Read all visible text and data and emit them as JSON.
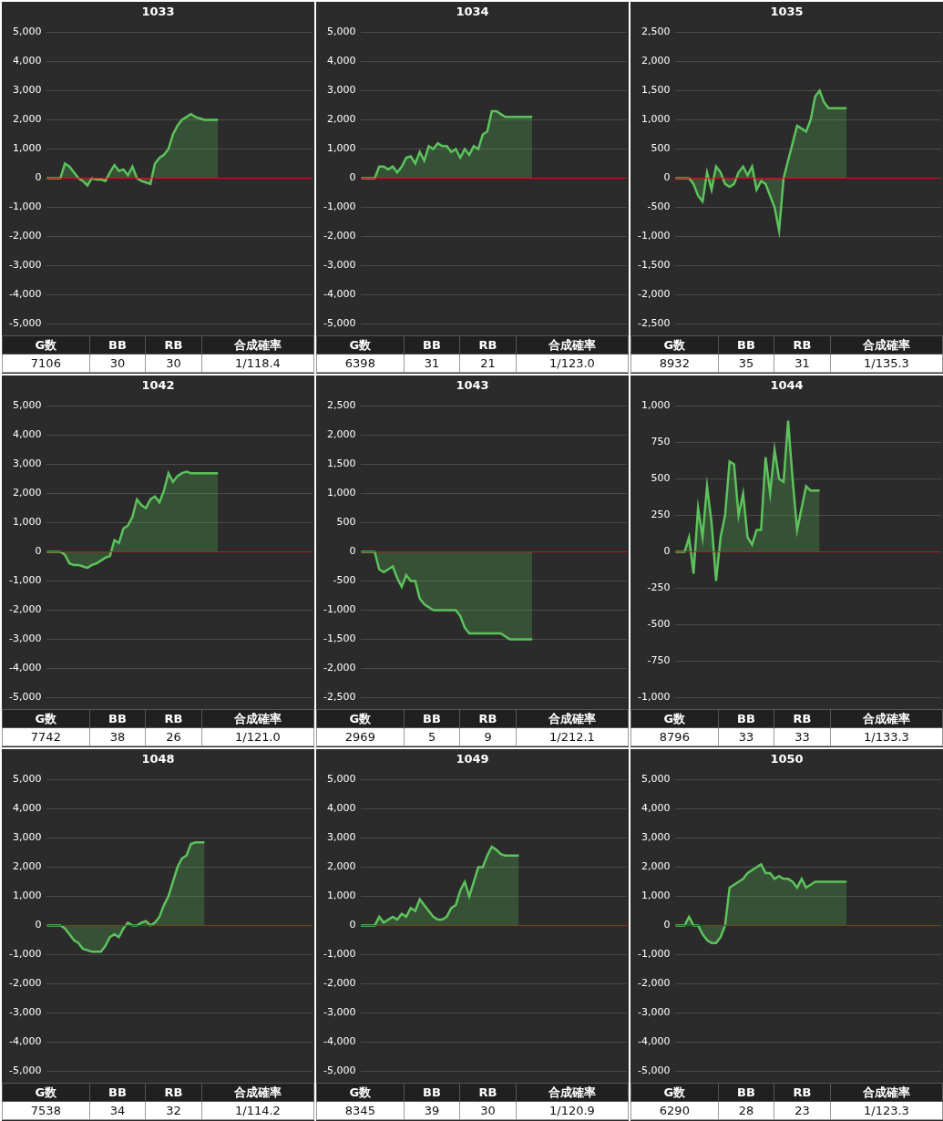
{
  "chart_data": [
    {
      "type": "area",
      "title": "1033",
      "categories": [
        null,
        null,
        null,
        null,
        null,
        null,
        null,
        null,
        null,
        null,
        null,
        null,
        null,
        null,
        null,
        null,
        null,
        null,
        null,
        null,
        null,
        null,
        null,
        null,
        null,
        null,
        null,
        null,
        null,
        null,
        null,
        null,
        null,
        null,
        null,
        null,
        null,
        null,
        null,
        null,
        null,
        null,
        null,
        null,
        null,
        null,
        null,
        null,
        null,
        null,
        null,
        null,
        null,
        null,
        null,
        null,
        null,
        null,
        null,
        null
      ],
      "series": [
        {
          "color": "#5cc35c",
          "values": [
            0,
            0,
            0,
            0,
            500,
            400,
            200,
            0,
            -100,
            -250,
            0,
            -50,
            -50,
            -100,
            200,
            450,
            250,
            300,
            100,
            400,
            0,
            -100,
            -150,
            -200,
            500,
            700,
            800,
            1000,
            1500,
            1800,
            2000,
            2100,
            2200,
            2100,
            2050,
            2000,
            2000,
            2000,
            2000,
            null,
            null,
            null,
            null,
            null,
            null,
            null,
            null,
            null,
            null,
            null,
            null,
            null,
            null,
            null,
            null,
            null,
            null,
            null,
            null,
            null
          ]
        }
      ],
      "ylim": [
        -5000,
        5000
      ],
      "yticks": [
        {
          "value": -5000,
          "label": "-5,000"
        },
        {
          "value": -4000,
          "label": "-4,000"
        },
        {
          "value": -3000,
          "label": "-3,000"
        },
        {
          "value": -2000,
          "label": "-2,000"
        },
        {
          "value": -1000,
          "label": "-1,000"
        },
        0,
        {
          "value": 1000,
          "label": "1,000"
        },
        {
          "value": 2000,
          "label": "2,000"
        },
        {
          "value": 3000,
          "label": "3,000"
        },
        {
          "value": 4000,
          "label": "4,000"
        },
        {
          "value": 5000,
          "label": "5,000"
        }
      ],
      "grid": "y",
      "marker": "none",
      "tick_labels": "y",
      "ref_lines": [
        {
          "axis": "y",
          "value": 0,
          "color": "#c8161d"
        }
      ],
      "annotations": [
        "G数",
        "BB",
        "RB",
        "合成確率",
        "7106",
        "30",
        "30",
        "1/118.4"
      ]
    },
    {
      "type": "area",
      "title": "1034",
      "categories": [
        null,
        null,
        null,
        null,
        null,
        null,
        null,
        null,
        null,
        null,
        null,
        null,
        null,
        null,
        null,
        null,
        null,
        null,
        null,
        null,
        null,
        null,
        null,
        null,
        null,
        null,
        null,
        null,
        null,
        null,
        null,
        null,
        null,
        null,
        null,
        null,
        null,
        null,
        null,
        null,
        null,
        null,
        null,
        null,
        null,
        null,
        null,
        null,
        null,
        null,
        null,
        null,
        null,
        null,
        null,
        null,
        null,
        null,
        null,
        null
      ],
      "series": [
        {
          "color": "#5cc35c",
          "values": [
            0,
            0,
            0,
            0,
            400,
            400,
            300,
            400,
            200,
            400,
            700,
            750,
            500,
            900,
            600,
            1100,
            1000,
            1200,
            1100,
            1100,
            900,
            1000,
            700,
            1000,
            800,
            1100,
            1000,
            1500,
            1600,
            2300,
            2300,
            2200,
            2100,
            2100,
            2100,
            2100,
            2100,
            2100,
            2100,
            null,
            null,
            null,
            null,
            null,
            null,
            null,
            null,
            null,
            null,
            null,
            null,
            null,
            null,
            null,
            null,
            null,
            null,
            null,
            null,
            null
          ]
        }
      ],
      "ylim": [
        -5000,
        5000
      ],
      "yticks": [
        {
          "value": -5000,
          "label": "-5,000"
        },
        {
          "value": -4000,
          "label": "-4,000"
        },
        {
          "value": -3000,
          "label": "-3,000"
        },
        {
          "value": -2000,
          "label": "-2,000"
        },
        {
          "value": -1000,
          "label": "-1,000"
        },
        0,
        {
          "value": 1000,
          "label": "1,000"
        },
        {
          "value": 2000,
          "label": "2,000"
        },
        {
          "value": 3000,
          "label": "3,000"
        },
        {
          "value": 4000,
          "label": "4,000"
        },
        {
          "value": 5000,
          "label": "5,000"
        }
      ],
      "grid": "y",
      "marker": "none",
      "tick_labels": "y",
      "ref_lines": [
        {
          "axis": "y",
          "value": 0,
          "color": "#c8161d"
        }
      ],
      "annotations": [
        "G数",
        "BB",
        "RB",
        "合成確率",
        "6398",
        "31",
        "21",
        "1/123.0"
      ]
    },
    {
      "type": "area",
      "title": "1035",
      "categories": [
        null,
        null,
        null,
        null,
        null,
        null,
        null,
        null,
        null,
        null,
        null,
        null,
        null,
        null,
        null,
        null,
        null,
        null,
        null,
        null,
        null,
        null,
        null,
        null,
        null,
        null,
        null,
        null,
        null,
        null,
        null,
        null,
        null,
        null,
        null,
        null,
        null,
        null,
        null,
        null,
        null,
        null,
        null,
        null,
        null,
        null,
        null,
        null,
        null,
        null,
        null,
        null,
        null,
        null,
        null,
        null,
        null,
        null,
        null,
        null
      ],
      "series": [
        {
          "color": "#5cc35c",
          "values": [
            0,
            0,
            0,
            0,
            -100,
            -300,
            -400,
            100,
            -200,
            200,
            100,
            -100,
            -150,
            -100,
            100,
            200,
            50,
            200,
            -200,
            -50,
            -100,
            -300,
            -500,
            -900,
            0,
            300,
            600,
            900,
            850,
            800,
            1000,
            1400,
            1500,
            1300,
            1200,
            1200,
            1200,
            1200,
            1200,
            null,
            null,
            null,
            null,
            null,
            null,
            null,
            null,
            null,
            null,
            null,
            null,
            null,
            null,
            null,
            null,
            null,
            null,
            null,
            null,
            null
          ]
        }
      ],
      "ylim": [
        -2500,
        2500
      ],
      "yticks": [
        {
          "value": -2500,
          "label": "-2,500"
        },
        {
          "value": -2000,
          "label": "-2,000"
        },
        {
          "value": -1500,
          "label": "-1,500"
        },
        {
          "value": -1000,
          "label": "-1,000"
        },
        -500,
        0,
        500,
        {
          "value": 1000,
          "label": "1,000"
        },
        {
          "value": 1500,
          "label": "1,500"
        },
        {
          "value": 2000,
          "label": "2,000"
        },
        {
          "value": 2500,
          "label": "2,500"
        }
      ],
      "grid": "y",
      "marker": "none",
      "tick_labels": "y",
      "ref_lines": [
        {
          "axis": "y",
          "value": 0,
          "color": "#c8161d"
        }
      ],
      "annotations": [
        "G数",
        "BB",
        "RB",
        "合成確率",
        "8932",
        "35",
        "31",
        "1/135.3"
      ]
    },
    {
      "type": "area",
      "title": "1042",
      "categories": [
        null,
        null,
        null,
        null,
        null,
        null,
        null,
        null,
        null,
        null,
        null,
        null,
        null,
        null,
        null,
        null,
        null,
        null,
        null,
        null,
        null,
        null,
        null,
        null,
        null,
        null,
        null,
        null,
        null,
        null,
        null,
        null,
        null,
        null,
        null,
        null,
        null,
        null,
        null,
        null,
        null,
        null,
        null,
        null,
        null,
        null,
        null,
        null,
        null,
        null,
        null,
        null,
        null,
        null,
        null,
        null,
        null,
        null,
        null,
        null
      ],
      "series": [
        {
          "color": "#5cc35c",
          "values": [
            0,
            0,
            0,
            0,
            -100,
            -400,
            -450,
            -450,
            -500,
            -550,
            -450,
            -400,
            -300,
            -200,
            -150,
            400,
            300,
            800,
            900,
            1200,
            1800,
            1600,
            1500,
            1800,
            1900,
            1700,
            2100,
            2700,
            2400,
            2600,
            2700,
            2750,
            2700,
            2700,
            2700,
            2700,
            2700,
            2700,
            2700,
            null,
            null,
            null,
            null,
            null,
            null,
            null,
            null,
            null,
            null,
            null,
            null,
            null,
            null,
            null,
            null,
            null,
            null,
            null,
            null,
            null
          ]
        }
      ],
      "ylim": [
        -5000,
        5000
      ],
      "yticks": [
        {
          "value": -5000,
          "label": "-5,000"
        },
        {
          "value": -4000,
          "label": "-4,000"
        },
        {
          "value": -3000,
          "label": "-3,000"
        },
        {
          "value": -2000,
          "label": "-2,000"
        },
        {
          "value": -1000,
          "label": "-1,000"
        },
        0,
        {
          "value": 1000,
          "label": "1,000"
        },
        {
          "value": 2000,
          "label": "2,000"
        },
        {
          "value": 3000,
          "label": "3,000"
        },
        {
          "value": 4000,
          "label": "4,000"
        },
        {
          "value": 5000,
          "label": "5,000"
        }
      ],
      "grid": "y",
      "marker": "none",
      "tick_labels": "y",
      "ref_lines": [
        {
          "axis": "y",
          "value": 0,
          "color": "#c8161d"
        }
      ],
      "annotations": [
        "G数",
        "BB",
        "RB",
        "合成確率",
        "7742",
        "38",
        "26",
        "1/121.0"
      ]
    },
    {
      "type": "area",
      "title": "1043",
      "categories": [
        null,
        null,
        null,
        null,
        null,
        null,
        null,
        null,
        null,
        null,
        null,
        null,
        null,
        null,
        null,
        null,
        null,
        null,
        null,
        null,
        null,
        null,
        null,
        null,
        null,
        null,
        null,
        null,
        null,
        null,
        null,
        null,
        null,
        null,
        null,
        null,
        null,
        null,
        null,
        null,
        null,
        null,
        null,
        null,
        null,
        null,
        null,
        null,
        null,
        null,
        null,
        null,
        null,
        null,
        null,
        null,
        null,
        null,
        null,
        null
      ],
      "series": [
        {
          "color": "#5cc35c",
          "values": [
            0,
            0,
            0,
            0,
            -300,
            -350,
            -300,
            -250,
            -450,
            -600,
            -400,
            -500,
            -500,
            -800,
            -900,
            -950,
            -1000,
            -1000,
            -1000,
            -1000,
            -1000,
            -1000,
            -1100,
            -1300,
            -1400,
            -1400,
            -1400,
            -1400,
            -1400,
            -1400,
            -1400,
            -1400,
            -1450,
            -1500,
            -1500,
            -1500,
            -1500,
            -1500,
            -1500,
            null,
            null,
            null,
            null,
            null,
            null,
            null,
            null,
            null,
            null,
            null,
            null,
            null,
            null,
            null,
            null,
            null,
            null,
            null,
            null,
            null
          ]
        }
      ],
      "ylim": [
        -2500,
        2500
      ],
      "yticks": [
        {
          "value": -2500,
          "label": "-2,500"
        },
        {
          "value": -2000,
          "label": "-2,000"
        },
        {
          "value": -1500,
          "label": "-1,500"
        },
        {
          "value": -1000,
          "label": "-1,000"
        },
        -500,
        0,
        500,
        {
          "value": 1000,
          "label": "1,000"
        },
        {
          "value": 1500,
          "label": "1,500"
        },
        {
          "value": 2000,
          "label": "2,000"
        },
        {
          "value": 2500,
          "label": "2,500"
        }
      ],
      "grid": "y",
      "marker": "none",
      "tick_labels": "y",
      "ref_lines": [
        {
          "axis": "y",
          "value": 0,
          "color": "#c8161d"
        }
      ],
      "annotations": [
        "G数",
        "BB",
        "RB",
        "合成確率",
        "2969",
        "5",
        "9",
        "1/212.1"
      ]
    },
    {
      "type": "area",
      "title": "1044",
      "categories": [
        null,
        null,
        null,
        null,
        null,
        null,
        null,
        null,
        null,
        null,
        null,
        null,
        null,
        null,
        null,
        null,
        null,
        null,
        null,
        null,
        null,
        null,
        null,
        null,
        null,
        null,
        null,
        null,
        null,
        null,
        null,
        null,
        null,
        null,
        null,
        null,
        null,
        null,
        null,
        null,
        null,
        null,
        null,
        null,
        null,
        null,
        null,
        null,
        null,
        null,
        null,
        null,
        null,
        null,
        null,
        null,
        null,
        null,
        null,
        null
      ],
      "series": [
        {
          "color": "#5cc35c",
          "values": [
            0,
            0,
            0,
            100,
            -150,
            300,
            100,
            450,
            200,
            -200,
            100,
            250,
            620,
            600,
            250,
            400,
            100,
            50,
            150,
            150,
            650,
            400,
            700,
            500,
            480,
            900,
            500,
            150,
            300,
            450,
            420,
            420,
            420,
            null,
            null,
            null,
            null,
            null,
            null,
            null,
            null,
            null,
            null,
            null,
            null,
            null,
            null,
            null,
            null,
            null,
            null,
            null,
            null,
            null,
            null,
            null,
            null,
            null,
            null,
            null
          ]
        }
      ],
      "ylim": [
        -1000,
        1000
      ],
      "yticks": [
        {
          "value": -1000,
          "label": "-1,000"
        },
        -750,
        -500,
        -250,
        0,
        250,
        500,
        750,
        {
          "value": 1000,
          "label": "1,000"
        }
      ],
      "grid": "y",
      "marker": "none",
      "tick_labels": "y",
      "ref_lines": [
        {
          "axis": "y",
          "value": 0,
          "color": "#c8161d"
        }
      ],
      "annotations": [
        "G数",
        "BB",
        "RB",
        "合成確率",
        "8796",
        "33",
        "33",
        "1/133.3"
      ]
    },
    {
      "type": "area",
      "title": "1048",
      "categories": [
        null,
        null,
        null,
        null,
        null,
        null,
        null,
        null,
        null,
        null,
        null,
        null,
        null,
        null,
        null,
        null,
        null,
        null,
        null,
        null,
        null,
        null,
        null,
        null,
        null,
        null,
        null,
        null,
        null,
        null,
        null,
        null,
        null,
        null,
        null,
        null,
        null,
        null,
        null,
        null,
        null,
        null,
        null,
        null,
        null,
        null,
        null,
        null,
        null,
        null,
        null,
        null,
        null,
        null,
        null,
        null,
        null,
        null,
        null,
        null
      ],
      "series": [
        {
          "color": "#5cc35c",
          "values": [
            0,
            0,
            0,
            0,
            -100,
            -300,
            -500,
            -600,
            -800,
            -850,
            -900,
            -900,
            -900,
            -700,
            -400,
            -300,
            -400,
            -100,
            100,
            0,
            0,
            100,
            150,
            0,
            100,
            300,
            700,
            1000,
            1500,
            2000,
            2300,
            2400,
            2800,
            2850,
            2850,
            2850,
            null,
            null,
            null,
            null,
            null,
            null,
            null,
            null,
            null,
            null,
            null,
            null,
            null,
            null,
            null,
            null,
            null,
            null,
            null,
            null,
            null,
            null,
            null,
            null
          ]
        }
      ],
      "ylim": [
        -5000,
        5000
      ],
      "yticks": [
        {
          "value": -5000,
          "label": "-5,000"
        },
        {
          "value": -4000,
          "label": "-4,000"
        },
        {
          "value": -3000,
          "label": "-3,000"
        },
        {
          "value": -2000,
          "label": "-2,000"
        },
        {
          "value": -1000,
          "label": "-1,000"
        },
        0,
        {
          "value": 1000,
          "label": "1,000"
        },
        {
          "value": 2000,
          "label": "2,000"
        },
        {
          "value": 3000,
          "label": "3,000"
        },
        {
          "value": 4000,
          "label": "4,000"
        },
        {
          "value": 5000,
          "label": "5,000"
        }
      ],
      "grid": "y",
      "marker": "none",
      "tick_labels": "y",
      "ref_lines": [
        {
          "axis": "y",
          "value": 0,
          "color": "#c8161d"
        }
      ],
      "annotations": [
        "G数",
        "BB",
        "RB",
        "合成確率",
        "7538",
        "34",
        "32",
        "1/114.2"
      ]
    },
    {
      "type": "area",
      "title": "1049",
      "categories": [
        null,
        null,
        null,
        null,
        null,
        null,
        null,
        null,
        null,
        null,
        null,
        null,
        null,
        null,
        null,
        null,
        null,
        null,
        null,
        null,
        null,
        null,
        null,
        null,
        null,
        null,
        null,
        null,
        null,
        null,
        null,
        null,
        null,
        null,
        null,
        null,
        null,
        null,
        null,
        null,
        null,
        null,
        null,
        null,
        null,
        null,
        null,
        null,
        null,
        null,
        null,
        null,
        null,
        null,
        null,
        null,
        null,
        null,
        null,
        null
      ],
      "series": [
        {
          "color": "#5cc35c",
          "values": [
            0,
            0,
            0,
            0,
            300,
            100,
            200,
            300,
            200,
            400,
            300,
            600,
            500,
            900,
            700,
            500,
            300,
            200,
            200,
            300,
            600,
            700,
            1200,
            1500,
            1000,
            1500,
            2000,
            2000,
            2400,
            2700,
            2600,
            2450,
            2400,
            2400,
            2400,
            2400,
            null,
            null,
            null,
            null,
            null,
            null,
            null,
            null,
            null,
            null,
            null,
            null,
            null,
            null,
            null,
            null,
            null,
            null,
            null,
            null,
            null,
            null,
            null,
            null
          ]
        }
      ],
      "ylim": [
        -5000,
        5000
      ],
      "yticks": [
        {
          "value": -5000,
          "label": "-5,000"
        },
        {
          "value": -4000,
          "label": "-4,000"
        },
        {
          "value": -3000,
          "label": "-3,000"
        },
        {
          "value": -2000,
          "label": "-2,000"
        },
        {
          "value": -1000,
          "label": "-1,000"
        },
        0,
        {
          "value": 1000,
          "label": "1,000"
        },
        {
          "value": 2000,
          "label": "2,000"
        },
        {
          "value": 3000,
          "label": "3,000"
        },
        {
          "value": 4000,
          "label": "4,000"
        },
        {
          "value": 5000,
          "label": "5,000"
        }
      ],
      "grid": "y",
      "marker": "none",
      "tick_labels": "y",
      "ref_lines": [
        {
          "axis": "y",
          "value": 0,
          "color": "#c8161d"
        }
      ],
      "annotations": [
        "G数",
        "BB",
        "RB",
        "合成確率",
        "8345",
        "39",
        "30",
        "1/120.9"
      ]
    },
    {
      "type": "area",
      "title": "1050",
      "categories": [
        null,
        null,
        null,
        null,
        null,
        null,
        null,
        null,
        null,
        null,
        null,
        null,
        null,
        null,
        null,
        null,
        null,
        null,
        null,
        null,
        null,
        null,
        null,
        null,
        null,
        null,
        null,
        null,
        null,
        null,
        null,
        null,
        null,
        null,
        null,
        null,
        null,
        null,
        null,
        null,
        null,
        null,
        null,
        null,
        null,
        null,
        null,
        null,
        null,
        null,
        null,
        null,
        null,
        null,
        null,
        null,
        null,
        null,
        null,
        null
      ],
      "series": [
        {
          "color": "#5cc35c",
          "values": [
            0,
            0,
            0,
            300,
            0,
            0,
            -300,
            -500,
            -600,
            -600,
            -400,
            0,
            1300,
            1400,
            1500,
            1600,
            1800,
            1900,
            2000,
            2100,
            1800,
            1800,
            1600,
            1700,
            1600,
            1600,
            1500,
            1300,
            1600,
            1300,
            1400,
            1500,
            1500,
            1500,
            1500,
            1500,
            1500,
            1500,
            1500,
            null,
            null,
            null,
            null,
            null,
            null,
            null,
            null,
            null,
            null,
            null,
            null,
            null,
            null,
            null,
            null,
            null,
            null,
            null,
            null,
            null
          ]
        }
      ],
      "ylim": [
        -5000,
        5000
      ],
      "yticks": [
        {
          "value": -5000,
          "label": "-5,000"
        },
        {
          "value": -4000,
          "label": "-4,000"
        },
        {
          "value": -3000,
          "label": "-3,000"
        },
        {
          "value": -2000,
          "label": "-2,000"
        },
        {
          "value": -1000,
          "label": "-1,000"
        },
        0,
        {
          "value": 1000,
          "label": "1,000"
        },
        {
          "value": 2000,
          "label": "2,000"
        },
        {
          "value": 3000,
          "label": "3,000"
        },
        {
          "value": 4000,
          "label": "4,000"
        },
        {
          "value": 5000,
          "label": "5,000"
        }
      ],
      "grid": "y",
      "marker": "none",
      "tick_labels": "y",
      "ref_lines": [
        {
          "axis": "y",
          "value": 0,
          "color": "#c8161d"
        }
      ],
      "annotations": [
        "G数",
        "BB",
        "RB",
        "合成確率",
        "6290",
        "28",
        "23",
        "1/123.3"
      ]
    }
  ]
}
